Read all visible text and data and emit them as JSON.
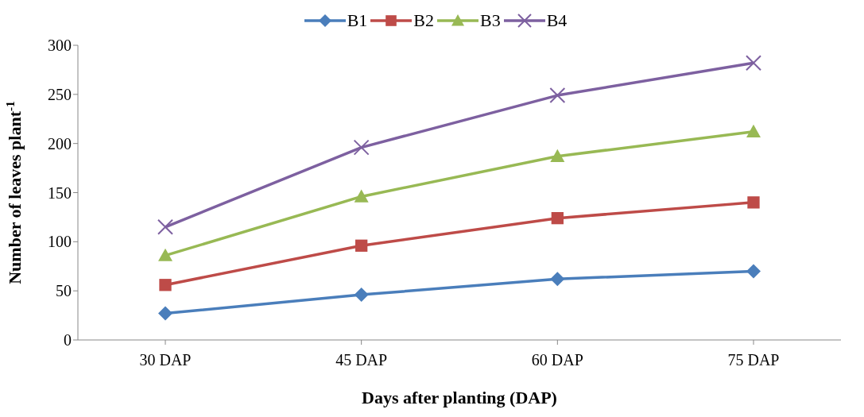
{
  "chart_data": {
    "type": "line",
    "xlabel": "Days after planting (DAP)",
    "ylabel": "Number of leaves  plant$^{-1}$",
    "categories": [
      "30 DAP",
      "45 DAP",
      "60 DAP",
      "75 DAP"
    ],
    "series": [
      {
        "name": "B1",
        "color": "#4a7ebb",
        "marker": "diamond",
        "values": [
          27,
          46,
          62,
          70
        ]
      },
      {
        "name": "B2",
        "color": "#be4b48",
        "marker": "square",
        "values": [
          56,
          96,
          124,
          140
        ]
      },
      {
        "name": "B3",
        "color": "#98b954",
        "marker": "triangle",
        "values": [
          86,
          146,
          187,
          212
        ]
      },
      {
        "name": "B4",
        "color": "#7d60a0",
        "marker": "cross",
        "values": [
          115,
          196,
          249,
          282
        ]
      }
    ],
    "ylim": [
      0,
      300
    ],
    "yticks": [
      0,
      50,
      100,
      150,
      200,
      250,
      300
    ],
    "grid": false,
    "legend": "top",
    "line_style": "solid"
  }
}
